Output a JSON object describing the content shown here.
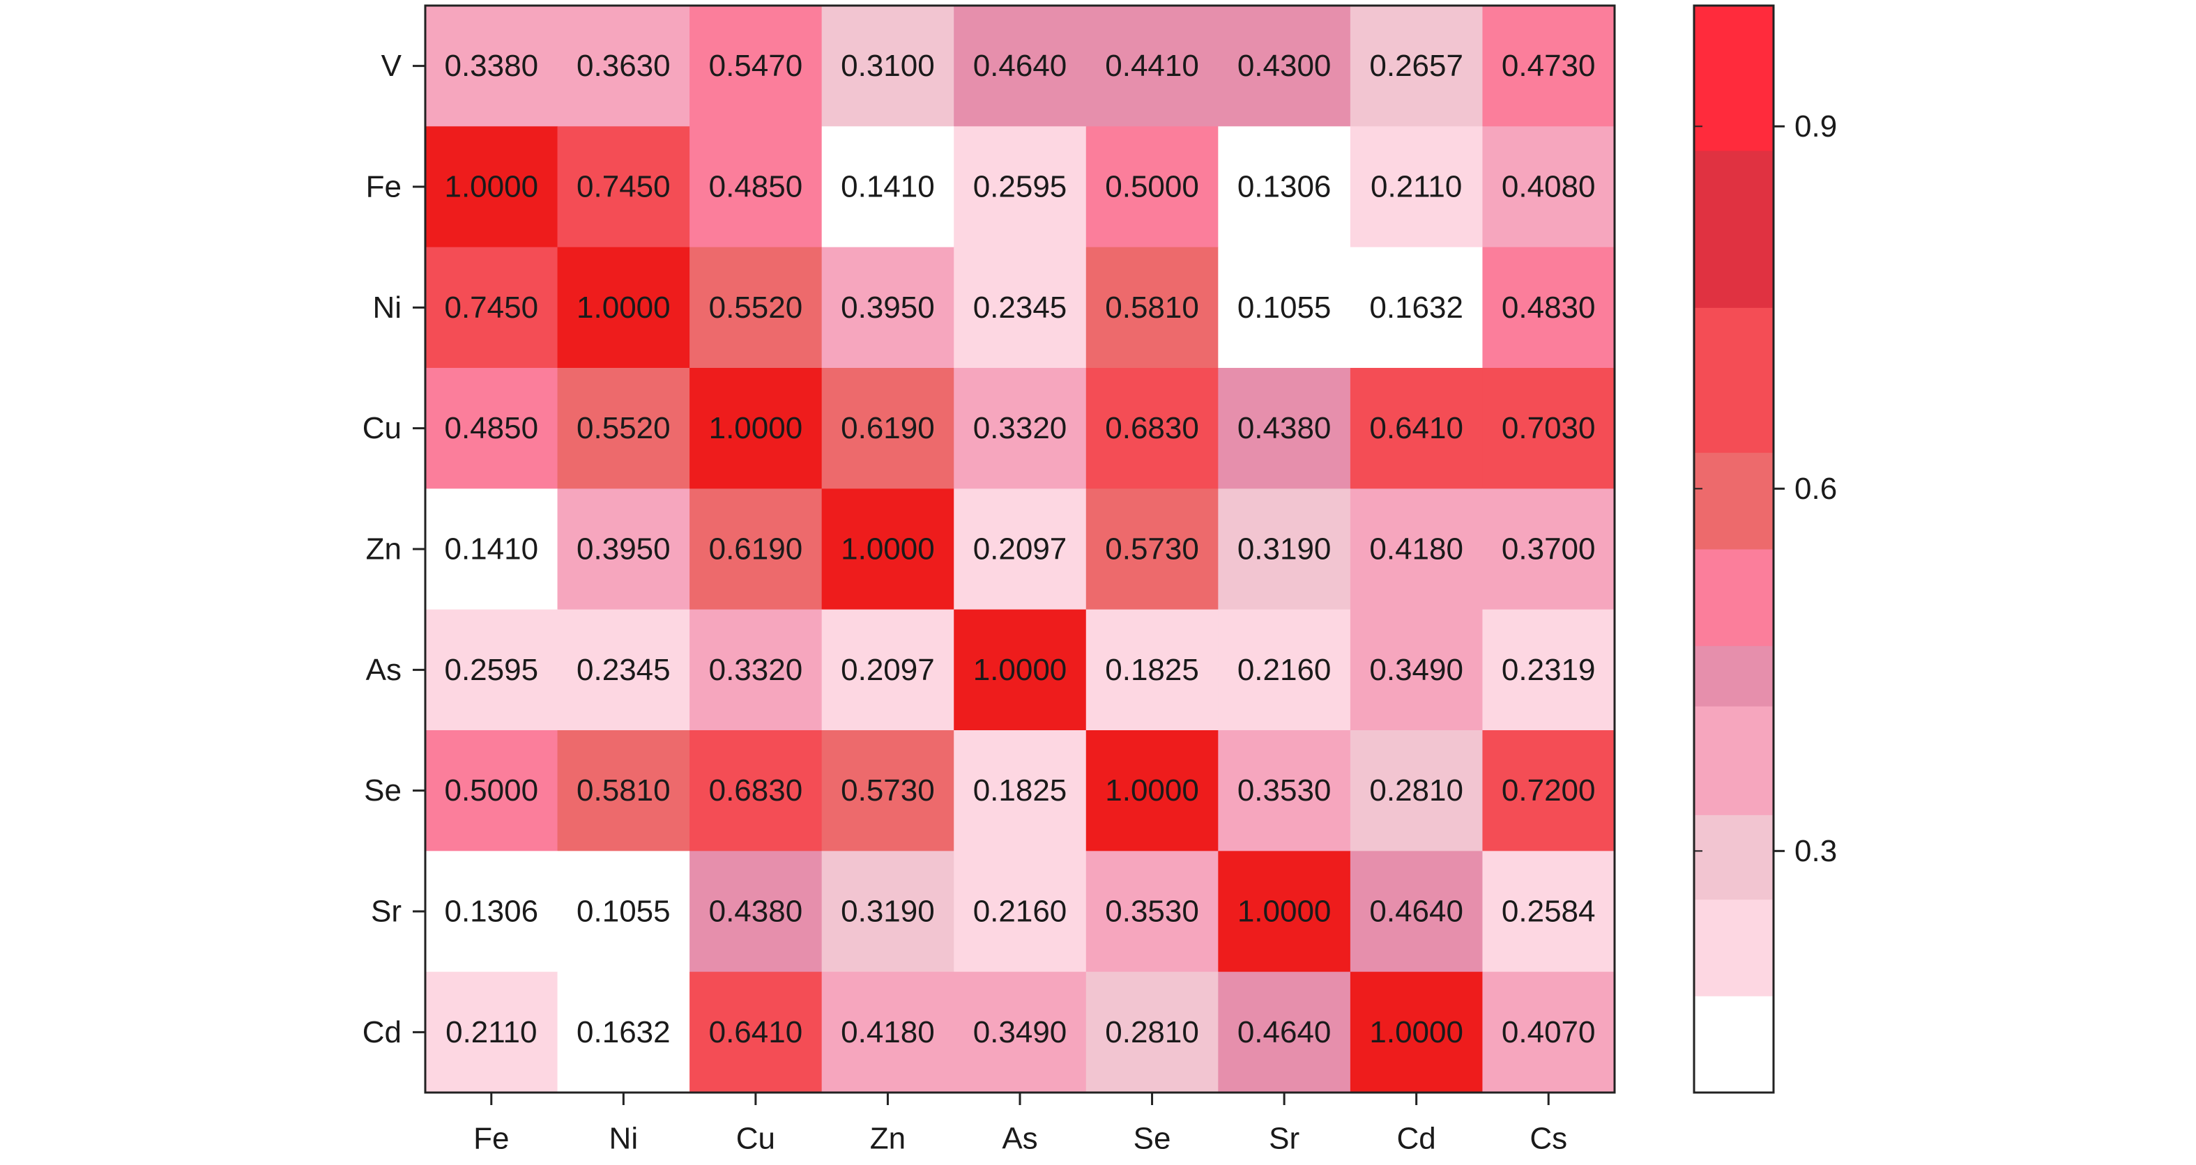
{
  "chart_data": {
    "type": "heatmap",
    "title": "",
    "xlabel": "",
    "ylabel": "",
    "x_categories": [
      "Fe",
      "Ni",
      "Cu",
      "Zn",
      "As",
      "Se",
      "Sr",
      "Cd",
      "Cs"
    ],
    "y_categories": [
      "V",
      "Fe",
      "Ni",
      "Cu",
      "Zn",
      "As",
      "Se",
      "Sr",
      "Cd"
    ],
    "values": [
      [
        "0.3380",
        "0.3630",
        "0.5470",
        "0.3100",
        "0.4640",
        "0.4410",
        "0.4300",
        "0.2657",
        "0.4730"
      ],
      [
        "1.0000",
        "0.7450",
        "0.4850",
        "0.1410",
        "0.2595",
        "0.5000",
        "0.1306",
        "0.2110",
        "0.4080"
      ],
      [
        "0.7450",
        "1.0000",
        "0.5520",
        "0.3950",
        "0.2345",
        "0.5810",
        "0.1055",
        "0.1632",
        "0.4830"
      ],
      [
        "0.4850",
        "0.5520",
        "1.0000",
        "0.6190",
        "0.3320",
        "0.6830",
        "0.4380",
        "0.6410",
        "0.7030"
      ],
      [
        "0.1410",
        "0.3950",
        "0.6190",
        "1.0000",
        "0.2097",
        "0.5730",
        "0.3190",
        "0.4180",
        "0.3700"
      ],
      [
        "0.2595",
        "0.2345",
        "0.3320",
        "0.2097",
        "1.0000",
        "0.1825",
        "0.2160",
        "0.3490",
        "0.2319"
      ],
      [
        "0.5000",
        "0.5810",
        "0.6830",
        "0.5730",
        "0.1825",
        "1.0000",
        "0.3530",
        "0.2810",
        "0.7200"
      ],
      [
        "0.1306",
        "0.1055",
        "0.4380",
        "0.3190",
        "0.2160",
        "0.3530",
        "1.0000",
        "0.4640",
        "0.2584"
      ],
      [
        "0.2110",
        "0.1632",
        "0.6410",
        "0.4180",
        "0.3490",
        "0.2810",
        "0.4640",
        "1.0000",
        "0.4070"
      ]
    ],
    "colorbar": {
      "ticks": [
        "0.3",
        "0.6",
        "0.9"
      ],
      "range": [
        0.1,
        1.0
      ],
      "stops": [
        {
          "v": 0.1,
          "color": "#ffffff"
        },
        {
          "v": 0.18,
          "color": "#fdd7e2"
        },
        {
          "v": 0.26,
          "color": "#f2c5d1"
        },
        {
          "v": 0.33,
          "color": "#f6a6be"
        },
        {
          "v": 0.42,
          "color": "#e68fac"
        },
        {
          "v": 0.47,
          "color": "#fb7e9b"
        },
        {
          "v": 0.55,
          "color": "#ed6a6c"
        },
        {
          "v": 0.63,
          "color": "#f44d55"
        },
        {
          "v": 0.75,
          "color": "#e03241"
        },
        {
          "v": 0.88,
          "color": "#ff2b3c"
        },
        {
          "v": 1.0,
          "color": "#ee1c1c"
        }
      ]
    },
    "grid": false,
    "legend": "colorbar-right"
  }
}
